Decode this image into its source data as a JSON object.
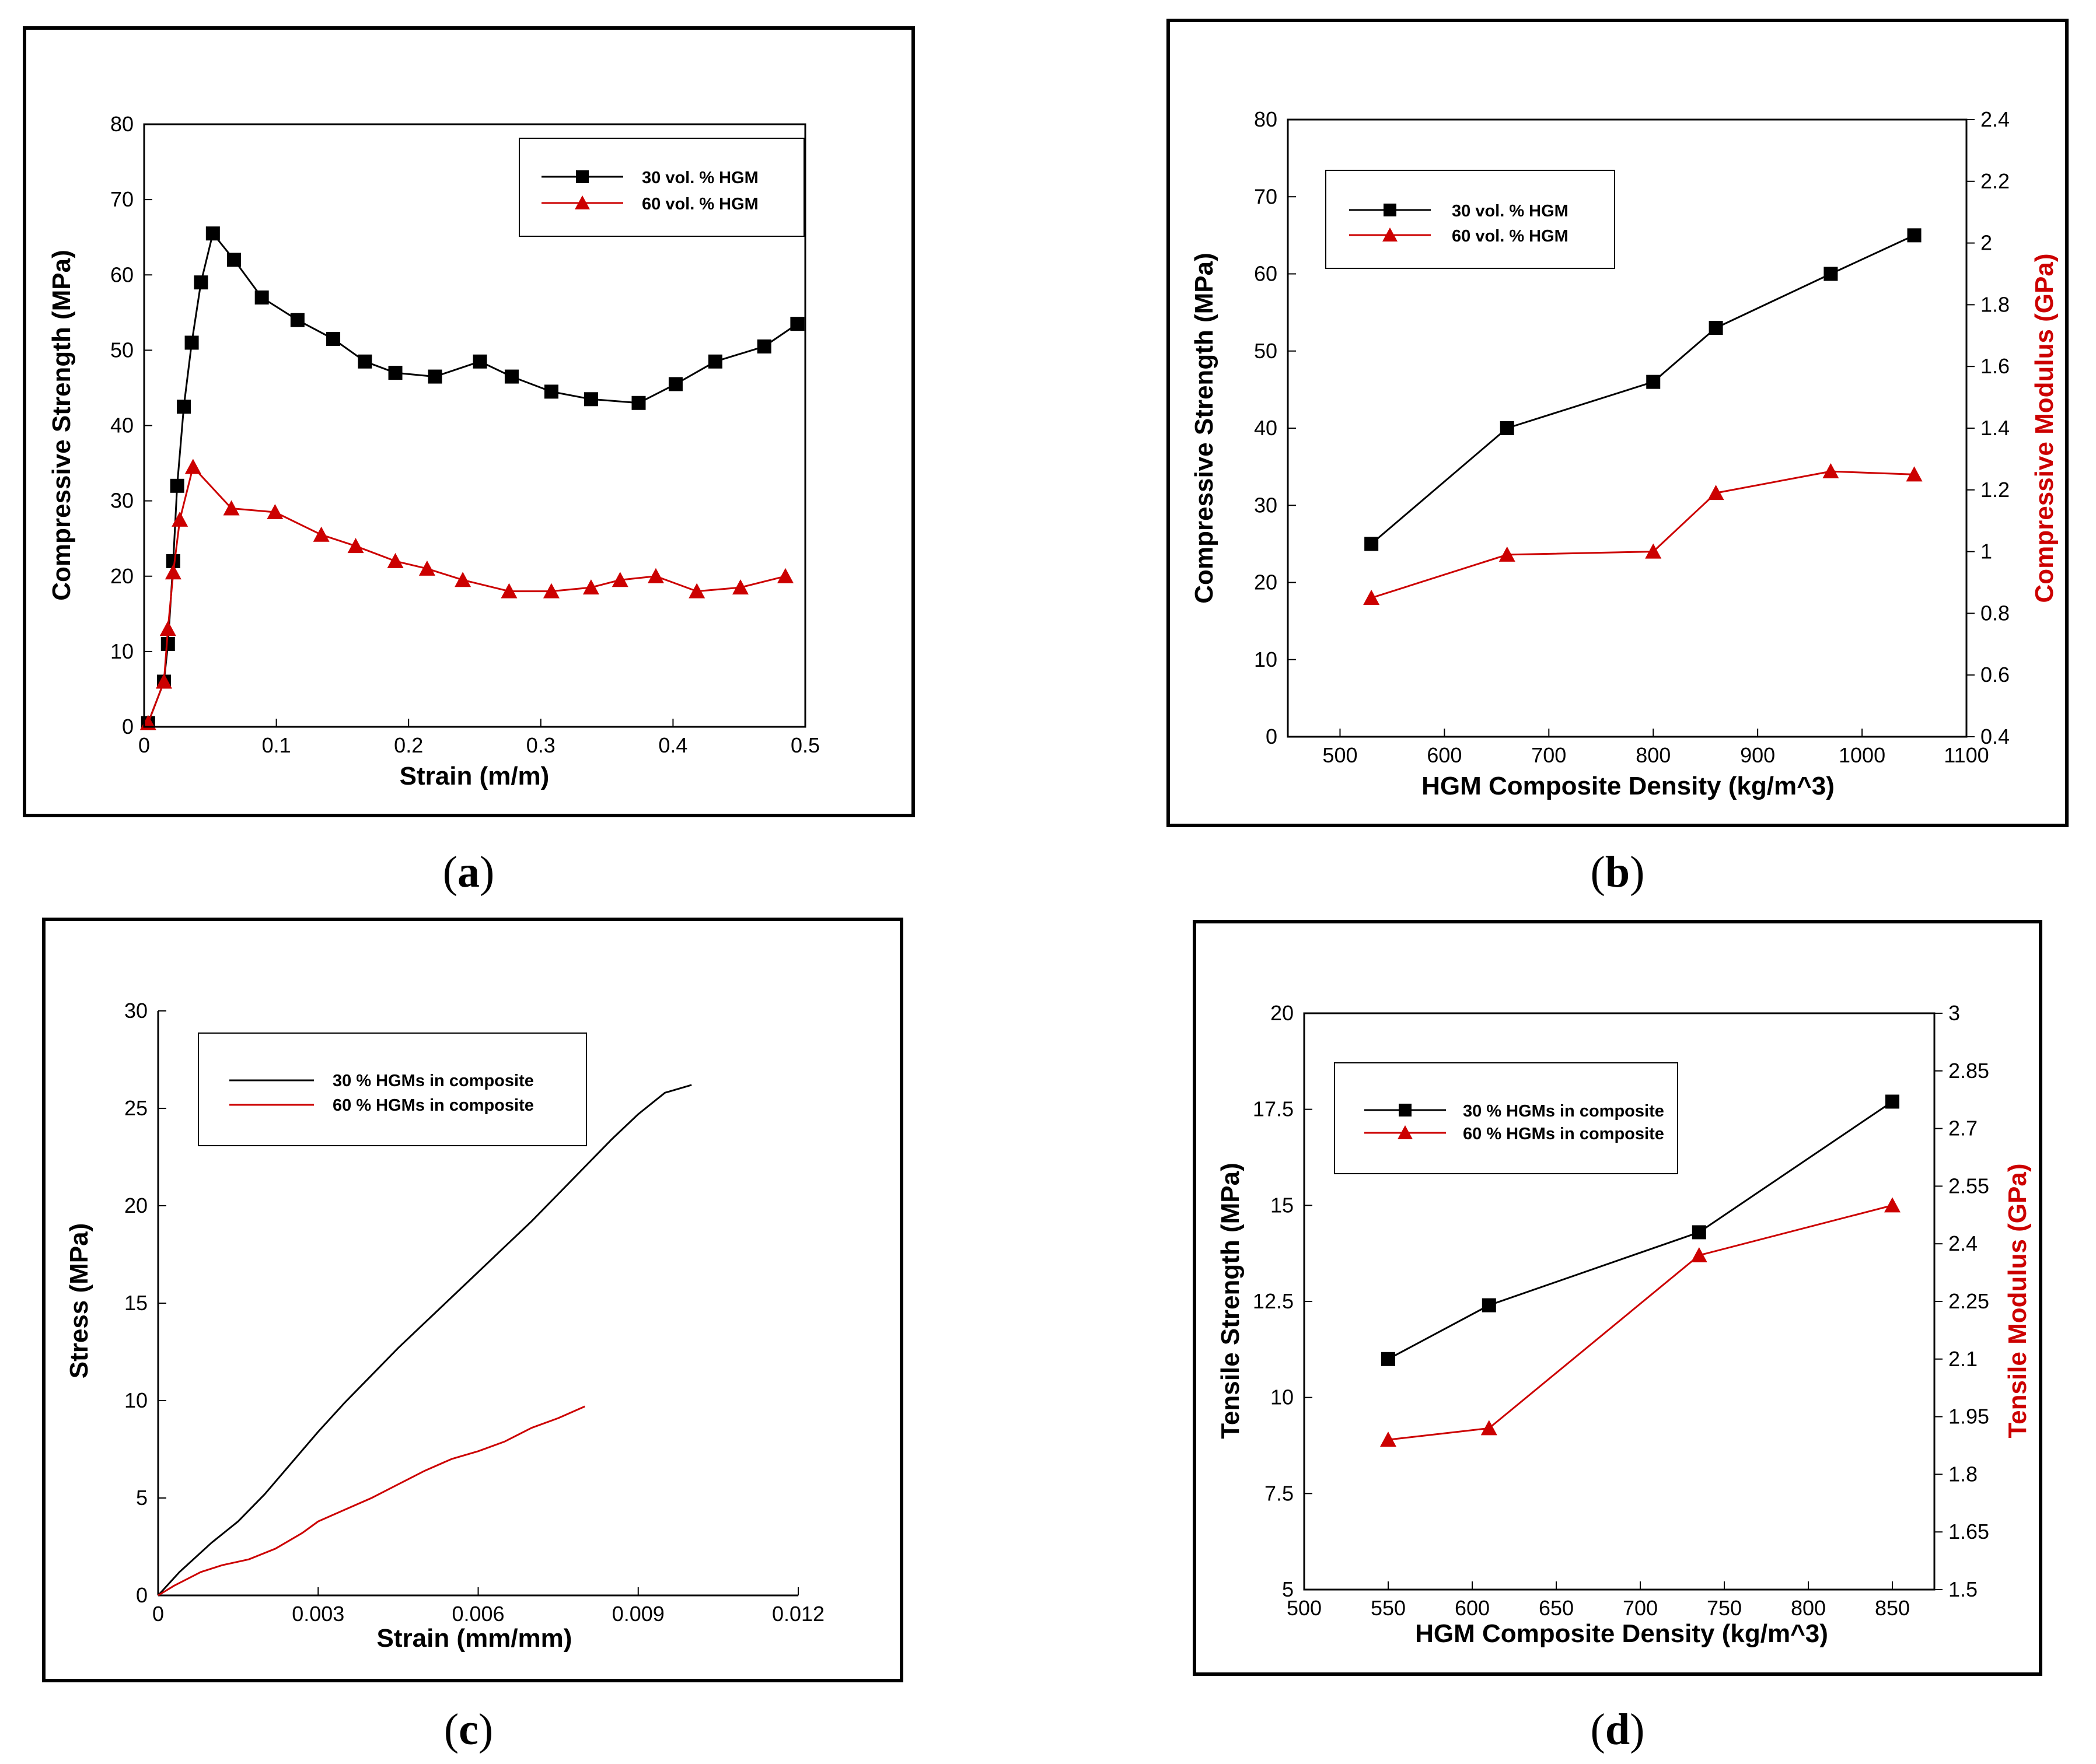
{
  "colors": {
    "series1": "#000000",
    "series2": "#cc0000",
    "frame": "#000000"
  },
  "chart_data": [
    {
      "panel": "a",
      "caption": {
        "open": "(",
        "letter": "a",
        "close": ")"
      },
      "type": "line",
      "xlabel": "Strain (m/m)",
      "ylabel": "Compressive Strength (MPa)",
      "xlim": [
        0,
        0.5
      ],
      "ylim": [
        0,
        80
      ],
      "xticks": [
        0,
        0.1,
        0.2,
        0.3,
        0.4,
        0.5
      ],
      "xtick_labels": [
        "0",
        "0.1",
        "0.2",
        "0.3",
        "0.4",
        "0.5"
      ],
      "yticks": [
        0,
        10,
        20,
        30,
        40,
        50,
        60,
        70,
        80
      ],
      "ytick_labels": [
        "0",
        "10",
        "20",
        "30",
        "40",
        "50",
        "60",
        "70",
        "80"
      ],
      "legend_position": "top-right",
      "series": [
        {
          "name": "30 vol. % HGM",
          "marker": "square",
          "x": [
            0.003,
            0.015,
            0.018,
            0.022,
            0.025,
            0.03,
            0.036,
            0.043,
            0.052,
            0.068,
            0.089,
            0.116,
            0.143,
            0.167,
            0.19,
            0.22,
            0.254,
            0.278,
            0.308,
            0.338,
            0.374,
            0.402,
            0.432,
            0.469,
            0.494
          ],
          "y": [
            0.5,
            6,
            11,
            22,
            32,
            42.5,
            51,
            59,
            65.5,
            62,
            57,
            54,
            51.5,
            48.5,
            47,
            46.5,
            48.5,
            46.5,
            44.5,
            43.5,
            43,
            45.5,
            48.5,
            50.5,
            53.5
          ]
        },
        {
          "name": "60 vol. % HGM",
          "marker": "triangle",
          "x": [
            0.003,
            0.015,
            0.018,
            0.022,
            0.027,
            0.037,
            0.066,
            0.099,
            0.134,
            0.16,
            0.19,
            0.214,
            0.241,
            0.276,
            0.308,
            0.338,
            0.36,
            0.387,
            0.418,
            0.451,
            0.485
          ],
          "y": [
            0.5,
            6,
            13,
            20.5,
            27.5,
            34.5,
            29,
            28.5,
            25.5,
            24,
            22,
            21,
            19.5,
            18,
            18,
            18.5,
            19.5,
            20,
            18,
            18.5,
            20
          ]
        }
      ]
    },
    {
      "panel": "b",
      "caption": {
        "open": "(",
        "letter": "b",
        "close": ")"
      },
      "type": "line",
      "xlabel": "HGM Composite Density (kg/m^3)",
      "ylabel": "Compressive Strength (MPa)",
      "y2label": "Compressive Modulus (GPa)",
      "xlim": [
        450,
        1100
      ],
      "ylim": [
        0,
        80
      ],
      "y2lim": [
        0.4,
        2.4
      ],
      "xticks": [
        500,
        600,
        700,
        800,
        900,
        1000,
        1100
      ],
      "xtick_labels": [
        "500",
        "600",
        "700",
        "800",
        "900",
        "1000",
        "1100"
      ],
      "yticks": [
        0,
        10,
        20,
        30,
        40,
        50,
        60,
        70,
        80
      ],
      "ytick_labels": [
        "0",
        "10",
        "20",
        "30",
        "40",
        "50",
        "60",
        "70",
        "80"
      ],
      "y2ticks": [
        0.4,
        0.6,
        0.8,
        1.0,
        1.2,
        1.4,
        1.6,
        1.8,
        2.0,
        2.2,
        2.4
      ],
      "y2tick_labels": [
        "0.4",
        "0.6",
        "0.8",
        "1",
        "1.2",
        "1.4",
        "1.6",
        "1.8",
        "2",
        "2.2",
        "2.4"
      ],
      "legend_position": "top-left",
      "series": [
        {
          "name": "30 vol. % HGM",
          "marker": "square",
          "axis": "left",
          "x": [
            530,
            660,
            800,
            860,
            970,
            1050
          ],
          "y": [
            25,
            40,
            46,
            53,
            60,
            65
          ]
        },
        {
          "name": "60 vol. % HGM",
          "marker": "triangle",
          "axis": "right",
          "x": [
            530,
            660,
            800,
            860,
            970,
            1050
          ],
          "y": [
            0.85,
            0.99,
            1.0,
            1.19,
            1.26,
            1.25
          ]
        }
      ]
    },
    {
      "panel": "c",
      "caption": {
        "open": "(",
        "letter": "c",
        "close": ")"
      },
      "type": "line",
      "xlabel": "Strain (mm/mm)",
      "ylabel": "Stress (MPa)",
      "xlim": [
        0,
        0.012
      ],
      "ylim": [
        0,
        30
      ],
      "xticks": [
        0,
        0.003,
        0.006,
        0.009,
        0.012
      ],
      "xtick_labels": [
        "0",
        "0.003",
        "0.006",
        "0.009",
        "0.012"
      ],
      "yticks": [
        0,
        5,
        10,
        15,
        20,
        25,
        30
      ],
      "ytick_labels": [
        "0",
        "5",
        "10",
        "15",
        "20",
        "25",
        "30"
      ],
      "legend_position": "top-left",
      "series": [
        {
          "name": "30 % HGMs in composite",
          "marker": "none",
          "x": [
            0,
            0.0004,
            0.001,
            0.0015,
            0.002,
            0.0025,
            0.003,
            0.0035,
            0.004,
            0.0045,
            0.005,
            0.0055,
            0.006,
            0.0065,
            0.007,
            0.0075,
            0.008,
            0.0085,
            0.009,
            0.0095,
            0.01
          ],
          "y": [
            0,
            1.2,
            2.7,
            3.8,
            5.2,
            6.8,
            8.4,
            9.9,
            11.3,
            12.7,
            14.0,
            15.3,
            16.6,
            17.9,
            19.2,
            20.6,
            22.0,
            23.4,
            24.7,
            25.8,
            26.2
          ]
        },
        {
          "name": "60 % HGMs in composite",
          "marker": "none",
          "x": [
            0,
            0.0003,
            0.0008,
            0.0012,
            0.0017,
            0.0022,
            0.0027,
            0.003,
            0.0035,
            0.004,
            0.0045,
            0.005,
            0.0055,
            0.006,
            0.0065,
            0.007,
            0.0075,
            0.008
          ],
          "y": [
            0,
            0.5,
            1.2,
            1.55,
            1.85,
            2.4,
            3.2,
            3.8,
            4.4,
            5.0,
            5.7,
            6.4,
            7.0,
            7.4,
            7.9,
            8.6,
            9.1,
            9.7
          ]
        }
      ]
    },
    {
      "panel": "d",
      "caption": {
        "open": "(",
        "letter": "d",
        "close": ")"
      },
      "type": "line",
      "xlabel": "HGM Composite Density (kg/m^3)",
      "ylabel": "Tensile Strength (MPa)",
      "y2label": "Tensile Modulus (GPa)",
      "xlim": [
        500,
        875
      ],
      "ylim": [
        5,
        20
      ],
      "y2lim": [
        1.5,
        3.0
      ],
      "xticks": [
        500,
        550,
        600,
        650,
        700,
        750,
        800,
        850
      ],
      "xtick_labels": [
        "500",
        "550",
        "600",
        "650",
        "700",
        "750",
        "800",
        "850"
      ],
      "yticks": [
        5,
        7.5,
        10,
        12.5,
        15,
        17.5,
        20
      ],
      "ytick_labels": [
        "5",
        "7.5",
        "10",
        "12.5",
        "15",
        "17.5",
        "20"
      ],
      "y2ticks": [
        1.5,
        1.65,
        1.8,
        1.95,
        2.1,
        2.25,
        2.4,
        2.55,
        2.7,
        2.85,
        3.0
      ],
      "y2tick_labels": [
        "1.5",
        "1.65",
        "1.8",
        "1.95",
        "2.1",
        "2.25",
        "2.4",
        "2.55",
        "2.7",
        "2.85",
        "3"
      ],
      "legend_position": "top-left",
      "series": [
        {
          "name": "30 % HGMs in composite",
          "marker": "square",
          "axis": "left",
          "x": [
            550,
            610,
            735,
            850
          ],
          "y": [
            11.0,
            12.4,
            14.3,
            17.7
          ]
        },
        {
          "name": "60 % HGMs in composite",
          "marker": "triangle",
          "axis": "right",
          "x": [
            550,
            610,
            735,
            850
          ],
          "y": [
            1.89,
            1.92,
            2.37,
            2.5
          ]
        }
      ]
    }
  ]
}
